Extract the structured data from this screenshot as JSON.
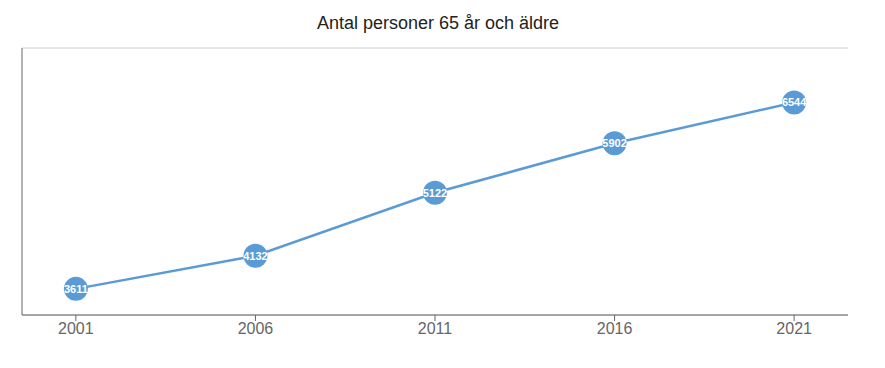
{
  "chart_data": {
    "type": "line",
    "title": "Antal personer 65 år och äldre",
    "x": [
      2001,
      2006,
      2011,
      2016,
      2021
    ],
    "values": [
      3611,
      4132,
      5122,
      5902,
      6544
    ],
    "color": "#5B9BD5",
    "xlim": [
      1999.5,
      2022.5
    ],
    "xticks": [
      2001,
      2006,
      2011,
      2016,
      2021
    ],
    "ylim": [
      3200,
      7400
    ],
    "yticks": [
      4000,
      5000,
      6000
    ],
    "grid": true,
    "tick_labels": "x",
    "data_labels": true,
    "marker": "circle"
  }
}
